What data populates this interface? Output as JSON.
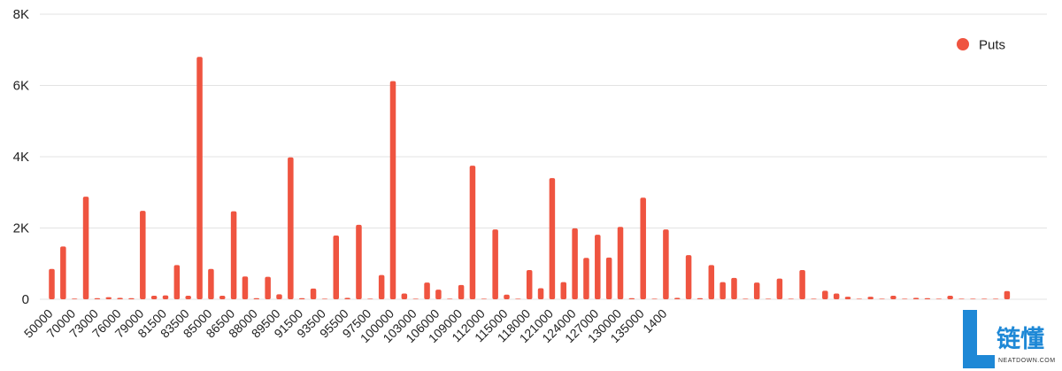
{
  "chart_data": {
    "type": "bar",
    "title": "",
    "xlabel": "",
    "ylabel": "",
    "ylim": [
      0,
      8000
    ],
    "yticks": [
      0,
      2000,
      4000,
      6000,
      8000
    ],
    "ytick_labels": [
      "0",
      "2K",
      "4K",
      "6K",
      "8K"
    ],
    "grid": true,
    "legend_position": "top-right",
    "series": [
      {
        "name": "Puts",
        "color": "#ef5440",
        "values": [
          850,
          1480,
          20,
          2880,
          30,
          60,
          40,
          30,
          2480,
          100,
          110,
          960,
          100,
          6800,
          850,
          100,
          2470,
          640,
          30,
          630,
          140,
          3980,
          30,
          300,
          10,
          1790,
          40,
          2090,
          10,
          680,
          6120,
          160,
          10,
          470,
          270,
          10,
          400,
          3750,
          10,
          1960,
          130,
          10,
          820,
          310,
          3400,
          480,
          1990,
          1160,
          1810,
          1170,
          2030,
          30,
          2850,
          10,
          1960,
          40,
          1240,
          30,
          960,
          480,
          600,
          10,
          470,
          10,
          580,
          10,
          820,
          10,
          240,
          160,
          70,
          10,
          70,
          10,
          100,
          10,
          40,
          30,
          10,
          100,
          10,
          10,
          10,
          10,
          230
        ]
      }
    ],
    "tick_labels": [
      "50000",
      "70000",
      "73000",
      "76000",
      "79000",
      "81500",
      "83500",
      "85000",
      "86500",
      "88000",
      "89500",
      "91500",
      "93500",
      "95500",
      "97500",
      "100000",
      "103000",
      "106000",
      "109000",
      "112000",
      "115000",
      "118000",
      "121000",
      "124000",
      "127000",
      "130000",
      "135000",
      "1400"
    ]
  },
  "watermark": {
    "cn_text": "链懂",
    "en_text": "NEATDOWN.COM",
    "color": "#1e88d6"
  }
}
